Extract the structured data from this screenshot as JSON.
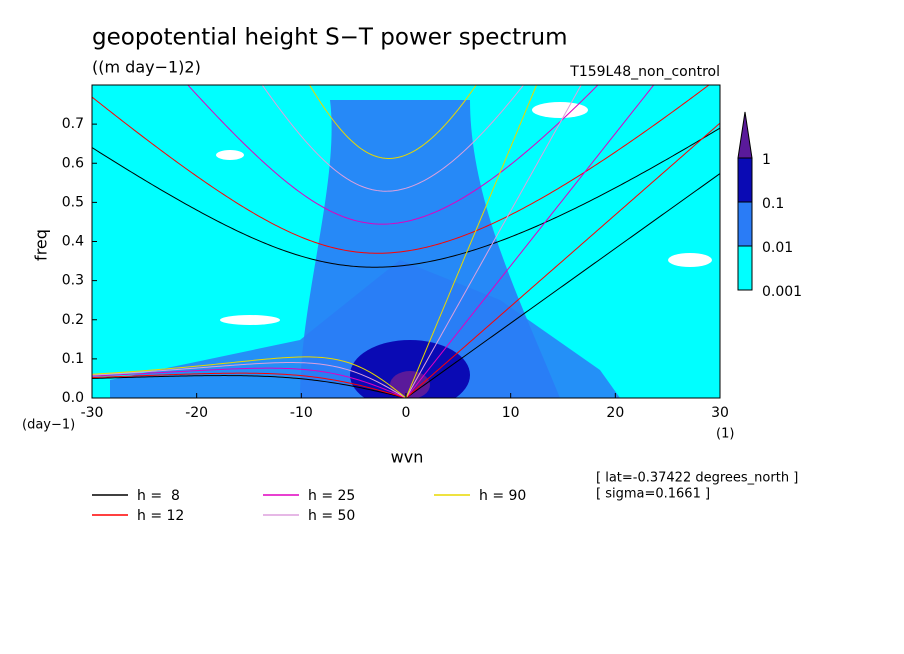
{
  "chart_data": {
    "type": "spectrum",
    "title": "geopotential height S−T power spectrum",
    "subtitle": "((m day−1)2)",
    "run_label": "T159L48_non_control",
    "x_label": "wvn",
    "y_label": "freq",
    "y_unit": "(day−1)",
    "x_unit": "(1)",
    "xlim": [
      -30,
      30
    ],
    "xticks": [
      -30,
      -20,
      -10,
      0,
      10,
      20,
      30
    ],
    "ylim": [
      0,
      0.8
    ],
    "yticks": [
      {
        "value": 0,
        "label": "0.0"
      },
      0.1,
      0.2,
      0.3,
      0.4,
      0.5,
      0.6,
      0.7
    ],
    "colorbar": {
      "levels": [
        0.001,
        0.01,
        0.1,
        1
      ],
      "colors": [
        "#00ffff",
        "#2a7cf6",
        "#0a0ab4",
        "#5a1a9a"
      ]
    },
    "series": [
      {
        "name": "h =  8",
        "h": 8,
        "color": "#000000"
      },
      {
        "name": "h = 12",
        "h": 12,
        "color": "#ff0000"
      },
      {
        "name": "h = 25",
        "h": 25,
        "color": "#e000c0"
      },
      {
        "name": "h = 50",
        "h": 50,
        "color": "#dda0dd"
      },
      {
        "name": "h = 90",
        "h": 90,
        "color": "#e8d800"
      }
    ],
    "annotations": [
      "[ lat=-0.37422 degrees_north ]",
      "[ sigma=0.1661 ]"
    ]
  }
}
